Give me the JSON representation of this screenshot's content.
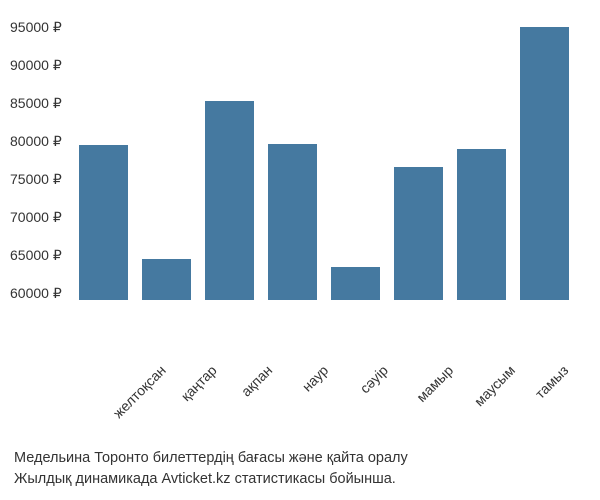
{
  "chart": {
    "type": "bar",
    "y_min": 57000,
    "y_max": 95000,
    "y_ticks": [
      95000,
      90000,
      85000,
      80000,
      75000,
      70000,
      65000,
      60000
    ],
    "currency_symbol": "₽",
    "bar_color": "#4579a0",
    "background_color": "#ffffff",
    "axis_text_color": "#333333",
    "tick_fontsize": 14,
    "bar_width_ratio": 0.78,
    "x_label_rotation": -45,
    "categories": [
      "желтоқсан",
      "қаңтар",
      "ақпан",
      "наур",
      "сәуір",
      "мамыр",
      "маусым",
      "тамыз"
    ],
    "values": [
      78000,
      62500,
      84000,
      78200,
      61500,
      75000,
      77500,
      94000
    ]
  },
  "caption": {
    "line1": "Медельина Торонто билеттердің бағасы және қайта оралу",
    "line2": "Жылдық динамикада Avticket.kz статистикасы бойынша.",
    "fontsize": 14.5,
    "color": "#333333"
  }
}
